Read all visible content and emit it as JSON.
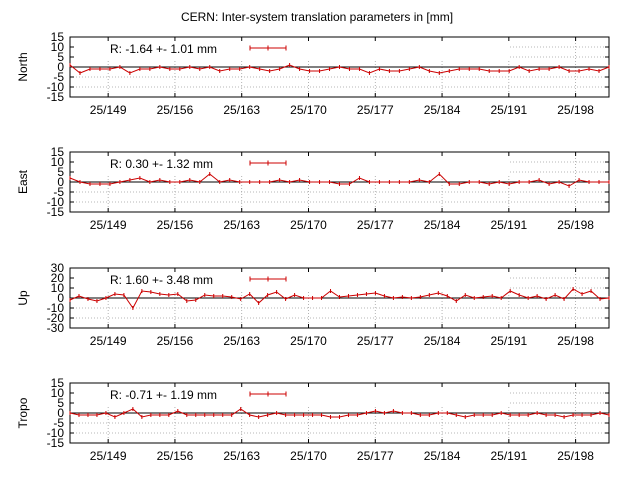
{
  "title": "CERN: Inter-system translation parameters in [mm]",
  "chart_data": [
    {
      "type": "line",
      "ylabel": "North",
      "ylim": [
        -15,
        15
      ],
      "yticks": [
        15,
        10,
        5,
        0,
        -5,
        -10,
        -15
      ],
      "legend": "R:  -1.64 +- 1.01 mm",
      "legend_placement": "top-left",
      "grid": true,
      "series_color": "#cc0000",
      "values": [
        1,
        -3,
        -1,
        -1,
        -1,
        0,
        -3,
        -1,
        -1,
        0,
        -1,
        -1,
        0,
        -1,
        0,
        -2,
        -1,
        -1,
        0,
        -1,
        -2,
        -1,
        1,
        -1,
        -2,
        -2,
        -1,
        0,
        -1,
        -1,
        -3,
        -1,
        -2,
        -2,
        -1,
        0,
        -2,
        -3,
        -2,
        -1,
        -1,
        -1,
        -2,
        -2,
        -2,
        0,
        -2,
        -1,
        -1,
        0,
        -2,
        -2,
        -1,
        -2,
        0
      ]
    },
    {
      "type": "line",
      "ylabel": "East",
      "ylim": [
        -15,
        15
      ],
      "yticks": [
        15,
        10,
        5,
        0,
        -5,
        -10,
        -15
      ],
      "legend": "R:   0.30 +- 1.32 mm",
      "legend_placement": "top-left",
      "grid": true,
      "series_color": "#cc0000",
      "values": [
        2,
        0,
        -1,
        -1,
        -1,
        0,
        1,
        2,
        0,
        1,
        0,
        0,
        1,
        0,
        4,
        0,
        1,
        0,
        0,
        0,
        0,
        1,
        0,
        1,
        0,
        0,
        0,
        -1,
        -1,
        2,
        0,
        0,
        0,
        0,
        0,
        1,
        0,
        4,
        -1,
        -1,
        0,
        0,
        -1,
        0,
        -1,
        0,
        0,
        1,
        -1,
        0,
        -2,
        1,
        0,
        0,
        0
      ]
    },
    {
      "type": "line",
      "ylabel": "Up",
      "ylim": [
        -30,
        30
      ],
      "yticks": [
        30,
        20,
        10,
        0,
        -10,
        -20,
        -30
      ],
      "legend": "R:   1.60 +- 3.48 mm",
      "legend_placement": "top-left",
      "grid": true,
      "series_color": "#cc0000",
      "values": [
        -2,
        2,
        -1,
        -3,
        0,
        4,
        3,
        -10,
        7,
        6,
        4,
        3,
        4,
        -3,
        -2,
        3,
        2,
        2,
        1,
        -1,
        4,
        -5,
        3,
        6,
        -1,
        3,
        0,
        0,
        0,
        7,
        1,
        2,
        3,
        4,
        5,
        2,
        0,
        1,
        0,
        1,
        3,
        5,
        2,
        -3,
        3,
        0,
        1,
        2,
        0,
        7,
        3,
        0,
        2,
        -1,
        3,
        -1,
        9,
        4,
        7,
        -1,
        0
      ]
    },
    {
      "type": "line",
      "ylabel": "Tropo",
      "ylim": [
        -15,
        15
      ],
      "yticks": [
        15,
        10,
        5,
        0,
        -5,
        -10,
        -15
      ],
      "legend": "R:  -0.71 +- 1.19 mm",
      "legend_placement": "top-left",
      "grid": true,
      "series_color": "#cc0000",
      "values": [
        0,
        -1,
        -1,
        -1,
        0,
        -2,
        0,
        2,
        -2,
        -1,
        -1,
        -1,
        1,
        -1,
        -1,
        -1,
        -1,
        -1,
        -1,
        2,
        -1,
        -2,
        -1,
        0,
        -1,
        -1,
        -1,
        -1,
        -1,
        -2,
        -2,
        -1,
        -1,
        0,
        1,
        0,
        1,
        0,
        0,
        -1,
        -1,
        0,
        0,
        -1,
        -2,
        -1,
        -1,
        -1,
        0,
        -1,
        -1,
        -1,
        0,
        -1,
        -1,
        -2,
        -1,
        -1,
        -1,
        0,
        -1
      ]
    }
  ],
  "x_axis": {
    "range_days": [
      145,
      201.5
    ],
    "ticks": [
      {
        "value": 149,
        "label": "25/149"
      },
      {
        "value": 156,
        "label": "25/156"
      },
      {
        "value": 163,
        "label": "25/163"
      },
      {
        "value": 170,
        "label": "25/170"
      },
      {
        "value": 177,
        "label": "25/177"
      },
      {
        "value": 184,
        "label": "25/184"
      },
      {
        "value": 191,
        "label": "25/191"
      },
      {
        "value": 198,
        "label": "25/198"
      }
    ]
  }
}
